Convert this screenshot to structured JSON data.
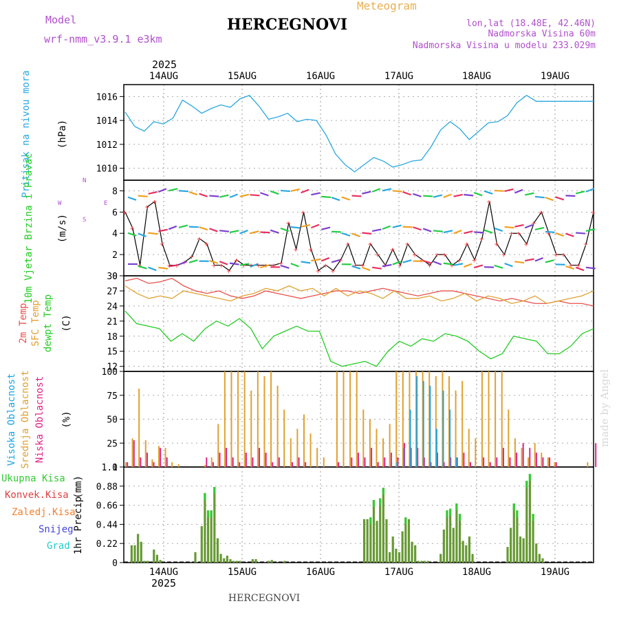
{
  "header": {
    "model_label": "Model",
    "model_name": "wrf-nmm_v3.9.1 e3km",
    "meteogram": "Meteogram",
    "title": "HERCEGNOVI",
    "lonlat": "lon,lat (18.48E, 42.46N)",
    "elevation": "Nadmorska Visina 60m",
    "model_elevation": "Nadmorska Visina u modelu 233.029m",
    "year": "2025",
    "footer_location": "HERCEGNOVI",
    "watermark": "made by Angel"
  },
  "days": [
    "14AUG",
    "15AUG",
    "16AUG",
    "17AUG",
    "18AUG",
    "19AUG"
  ],
  "colors": {
    "pressure": "#2aa7e0",
    "wind": "#000000",
    "temp2m": "#e8504a",
    "sfc": "#e0a030",
    "dew": "#22cc22",
    "high": "#1fa4e0",
    "mid": "#e0a030",
    "low": "#dd2288",
    "total": "#33cc33",
    "conv": "#e04040",
    "frozen": "#f08030",
    "snow": "#4444dd",
    "hail": "#22cccc"
  },
  "chart_data": [
    {
      "type": "line",
      "name": "pressure",
      "ylabel": "Pritisak na nivou mora",
      "unit": "(hPa)",
      "ylim": [
        1009,
        1017
      ],
      "yticks": [
        1010,
        1012,
        1014,
        1016
      ],
      "x_hours": [
        0,
        3,
        6,
        9,
        12,
        15,
        18,
        21,
        24,
        27,
        30,
        33,
        36,
        39,
        42,
        45,
        48,
        51,
        54,
        57,
        60,
        63,
        66,
        69,
        72,
        75,
        78,
        81,
        84,
        87,
        90,
        93,
        96,
        99,
        102,
        105,
        108,
        111,
        114,
        117,
        120,
        123,
        126,
        129,
        132,
        135,
        138,
        141,
        144,
        147
      ],
      "values": [
        1014.7,
        1013.5,
        1013.1,
        1013.9,
        1013.7,
        1014.2,
        1015.7,
        1015.2,
        1014.6,
        1015.0,
        1015.3,
        1015.1,
        1015.8,
        1016.1,
        1015.2,
        1014.1,
        1014.3,
        1014.6,
        1013.9,
        1014.1,
        1014.0,
        1012.8,
        1011.2,
        1010.3,
        1009.7,
        1010.3,
        1010.9,
        1010.6,
        1010.1,
        1010.3,
        1010.6,
        1010.7,
        1011.8,
        1013.2,
        1013.9,
        1013.3,
        1012.4,
        1013.1,
        1013.8,
        1013.9,
        1014.4,
        1015.5,
        1016.1,
        1015.6,
        1015.6,
        1015.6,
        1015.6,
        1015.6,
        1015.6,
        1015.6
      ]
    },
    {
      "type": "line",
      "name": "wind",
      "ylabel": "10m Vjetar Brzina i Pravac",
      "unit": "(m/s)",
      "compass": "N",
      "compass_w": "W",
      "compass_e": "E",
      "compass_s": "S",
      "ylim": [
        0,
        9
      ],
      "yticks": [
        0,
        2,
        4,
        6,
        8
      ],
      "values": [
        6,
        4.5,
        1,
        6.5,
        7,
        3,
        1,
        1,
        1.3,
        1.8,
        3.5,
        3,
        1,
        1,
        0.5,
        1.5,
        1,
        1,
        1,
        1,
        1,
        1.2,
        5,
        2.5,
        6,
        2.5,
        0.5,
        1,
        0.5,
        1.5,
        3,
        1,
        1,
        3,
        2,
        1,
        2.5,
        1,
        3,
        2,
        1.5,
        1,
        2,
        2,
        1,
        1.5,
        3,
        1.5,
        3.5,
        7,
        3,
        2,
        4,
        4,
        3,
        5,
        6,
        4,
        2,
        2,
        1,
        1,
        3,
        6
      ]
    },
    {
      "type": "line",
      "name": "temperature",
      "ylabel_2m": "2m Temp",
      "ylabel_sfc": "SFC Temp",
      "ylabel_dew": "dewpt Temp",
      "unit": "(C)",
      "ylim": [
        11,
        30
      ],
      "yticks": [
        12,
        15,
        18,
        21,
        24,
        27,
        30
      ],
      "series": [
        {
          "name": "2m Temp",
          "values": [
            29,
            29.5,
            28.5,
            28.8,
            29.5,
            28,
            27,
            26.5,
            27,
            26,
            25.5,
            26,
            27,
            26.5,
            26,
            25.5,
            26,
            26.5,
            27,
            27,
            26.5,
            27,
            27.5,
            27,
            26.5,
            26,
            26.5,
            27,
            27,
            26.5,
            26,
            25.5,
            25,
            25.5,
            25,
            24.5,
            24.5,
            25,
            24.5,
            24.5,
            24
          ]
        },
        {
          "name": "SFC Temp",
          "values": [
            28,
            26.5,
            25.5,
            26,
            25.5,
            27,
            26.5,
            26,
            25.5,
            25,
            26,
            26.5,
            27.5,
            27,
            28,
            27,
            27.5,
            26,
            27.5,
            26,
            27,
            26.5,
            25.5,
            27,
            25.5,
            25.5,
            26,
            25,
            25.5,
            26.5,
            25,
            26,
            25.5,
            24.5,
            25,
            26,
            24.5,
            25,
            25.5,
            26,
            27
          ]
        },
        {
          "name": "dewpt Temp",
          "values": [
            23,
            20.5,
            20,
            19.5,
            17,
            18.5,
            17,
            19.5,
            21,
            20,
            21.5,
            19.5,
            15.5,
            18,
            19,
            20,
            19,
            19,
            13,
            12,
            12.5,
            13,
            12,
            15,
            17,
            16,
            17.5,
            17,
            18.5,
            18,
            17,
            15,
            13.5,
            14.5,
            18,
            17.5,
            17,
            14.5,
            14.5,
            16,
            18.5,
            19.5
          ]
        }
      ]
    },
    {
      "type": "bar",
      "name": "cloudiness",
      "ylabel_high": "Visoka Oblacnost",
      "ylabel_mid": "Srednja Oblacnost",
      "ylabel_low": "Niska Oblacnost",
      "unit": "(%)",
      "ylim": [
        0,
        100
      ],
      "yticks": [
        0,
        25,
        50,
        75,
        100
      ],
      "series": [
        {
          "name": "Srednja",
          "values": [
            5,
            30,
            82,
            28,
            8,
            22,
            20,
            5,
            3,
            0,
            0,
            0,
            2,
            10,
            45,
            100,
            100,
            100,
            100,
            80,
            100,
            95,
            100,
            85,
            60,
            30,
            40,
            55,
            35,
            20,
            10,
            0,
            100,
            100,
            100,
            100,
            60,
            50,
            40,
            30,
            45,
            100,
            100,
            100,
            100,
            100,
            100,
            95,
            100,
            95,
            80,
            90,
            40,
            30,
            100,
            100,
            100,
            100,
            60,
            30,
            20,
            10,
            25,
            15,
            10,
            5,
            0,
            0,
            0,
            0,
            5,
            0
          ]
        },
        {
          "name": "Niska",
          "values": [
            5,
            28,
            10,
            15,
            5,
            20,
            10,
            0,
            0,
            0,
            0,
            0,
            10,
            5,
            15,
            20,
            10,
            5,
            15,
            10,
            20,
            15,
            5,
            10,
            0,
            5,
            10,
            5,
            0,
            0,
            0,
            0,
            5,
            0,
            10,
            15,
            10,
            20,
            5,
            10,
            15,
            10,
            25,
            20,
            20,
            10,
            5,
            15,
            5,
            10,
            10,
            15,
            5,
            0,
            10,
            5,
            10,
            20,
            10,
            15,
            25,
            20,
            15,
            10,
            10,
            5,
            0,
            0,
            0,
            0,
            0,
            25
          ]
        },
        {
          "name": "Visoka",
          "values": [
            0,
            0,
            0,
            0,
            0,
            0,
            0,
            0,
            0,
            0,
            0,
            0,
            0,
            0,
            0,
            0,
            0,
            0,
            0,
            0,
            0,
            0,
            0,
            0,
            0,
            0,
            0,
            0,
            0,
            0,
            0,
            0,
            0,
            0,
            0,
            0,
            0,
            0,
            0,
            0,
            0,
            5,
            20,
            60,
            95,
            90,
            85,
            40,
            80,
            60,
            10,
            0,
            0,
            0,
            0,
            0,
            0,
            0,
            0,
            0,
            0,
            0,
            0,
            0,
            0,
            0,
            0,
            0,
            0,
            0,
            0,
            0
          ]
        }
      ]
    },
    {
      "type": "bar",
      "name": "precipitation",
      "ylabel": "1hr Precip",
      "unit": "(mm)",
      "legend": [
        "Ukupna Kisa",
        "Konvek.Kisa",
        "Zaledj.Kisa",
        "Snijeg",
        "Grad"
      ],
      "ylim": [
        0,
        1.1
      ],
      "yticks": [
        "0",
        "0.22",
        "0.44",
        "0.66",
        "0.88",
        "1.1"
      ],
      "x_hours": [
        2,
        3,
        4,
        5,
        6,
        7,
        9,
        10,
        11,
        22,
        24,
        25,
        26,
        27,
        28,
        29,
        30,
        31,
        32,
        33,
        34,
        35,
        36,
        40,
        41,
        45,
        46,
        50,
        75,
        76,
        77,
        78,
        79,
        80,
        81,
        82,
        83,
        84,
        85,
        86,
        87,
        88,
        89,
        90,
        91,
        92,
        93,
        94,
        95,
        99,
        100,
        101,
        102,
        103,
        104,
        105,
        106,
        107,
        108,
        109,
        120,
        121,
        122,
        123,
        124,
        125,
        126,
        127,
        128,
        129,
        130,
        131
      ],
      "values": [
        0.2,
        0.2,
        0.33,
        0.24,
        0.02,
        0.02,
        0.15,
        0.09,
        0.03,
        0.12,
        0.42,
        0.8,
        0.6,
        0.6,
        0.87,
        0.28,
        0.1,
        0.05,
        0.08,
        0.04,
        0.02,
        0.02,
        0.02,
        0.04,
        0.04,
        0.02,
        0.03,
        0.02,
        0.5,
        0.5,
        0.52,
        0.72,
        0.48,
        0.74,
        0.86,
        0.5,
        0.12,
        0.3,
        0.16,
        0.12,
        0.36,
        0.52,
        0.5,
        0.24,
        0.2,
        0.02,
        0.02,
        0.02,
        0.02,
        0.1,
        0.38,
        0.6,
        0.62,
        0.4,
        0.68,
        0.56,
        0.25,
        0.2,
        0.3,
        0.1,
        0.18,
        0.4,
        0.68,
        0.6,
        0.3,
        0.28,
        0.94,
        1.02,
        0.56,
        0.22,
        0.1,
        0.05
      ]
    }
  ]
}
